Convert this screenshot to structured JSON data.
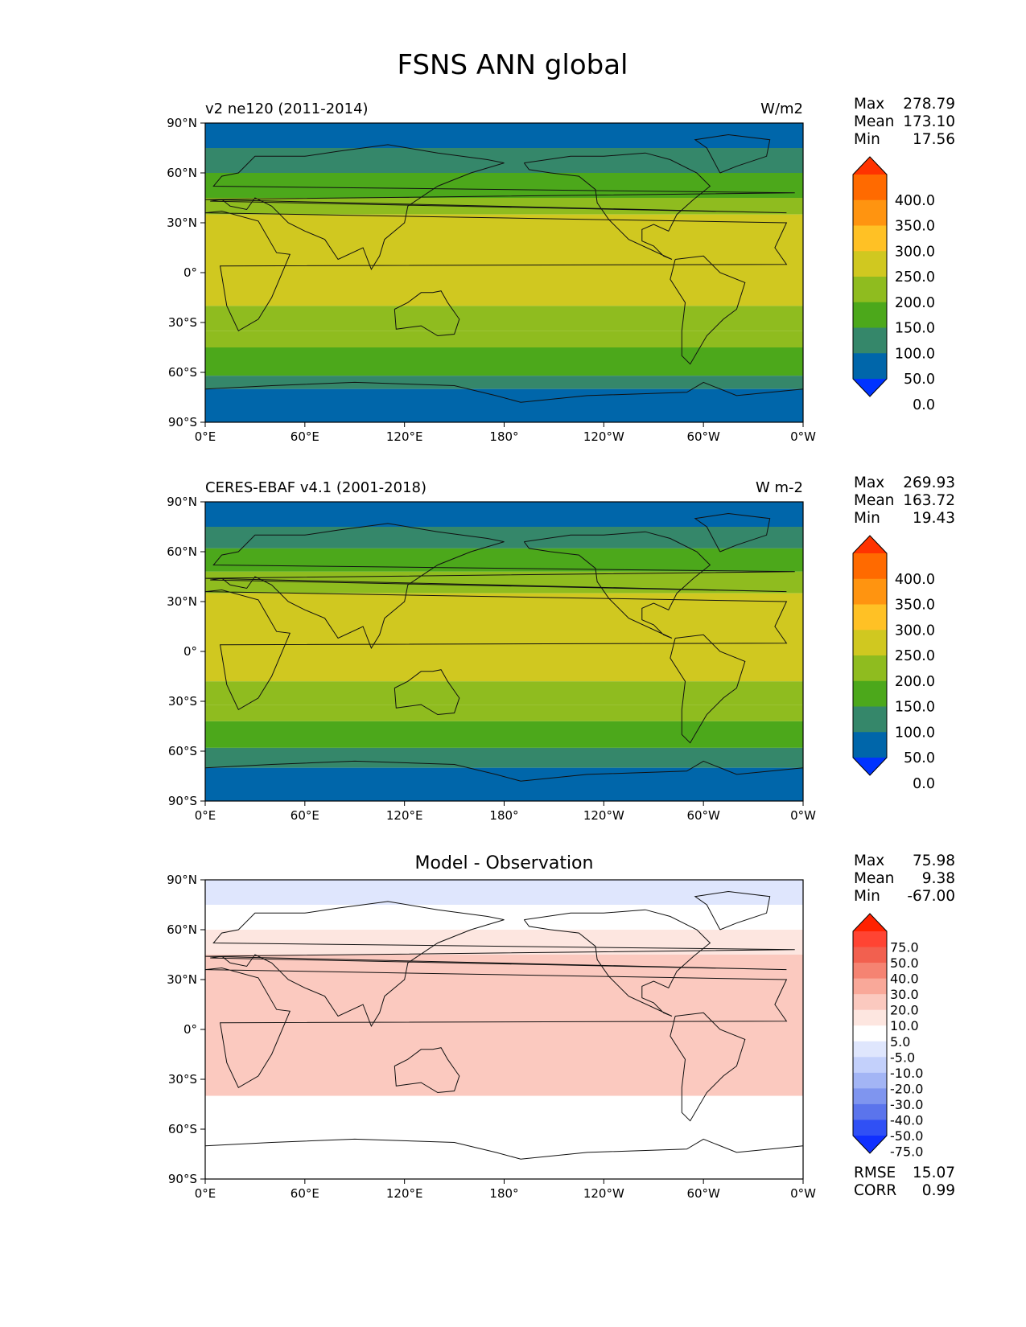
{
  "figure_title": "FSNS ANN global",
  "axes": {
    "lat_ticks": [
      "90°N",
      "60°N",
      "30°N",
      "0°",
      "30°S",
      "60°S",
      "90°S"
    ],
    "lon_ticks": [
      "0°E",
      "60°E",
      "120°E",
      "180°",
      "120°W",
      "60°W",
      "0°W"
    ]
  },
  "chart_data": [
    {
      "type": "heatmap",
      "title_left": "v2 ne120 (2011-2014)",
      "title_right": "W/m2",
      "stats": {
        "labels": [
          "Max",
          "Mean",
          "Min"
        ],
        "values": [
          "278.79",
          "173.10",
          "17.56"
        ]
      },
      "colorbar": {
        "levels": [
          "400.0",
          "350.0",
          "300.0",
          "250.0",
          "200.0",
          "150.0",
          "100.0",
          "50.0",
          "0.0"
        ],
        "colors": [
          "#ff3300",
          "#ff6a00",
          "#ff9410",
          "#ffc125",
          "#d0c820",
          "#8fbc1f",
          "#4ca81b",
          "#35876a",
          "#0066aa",
          "#0033ff"
        ]
      },
      "zonal_bands": [
        {
          "lat_range": [
            75,
            90
          ],
          "value": 30
        },
        {
          "lat_range": [
            60,
            75
          ],
          "value": 85
        },
        {
          "lat_range": [
            45,
            60
          ],
          "value": 125
        },
        {
          "lat_range": [
            35,
            45
          ],
          "value": 170
        },
        {
          "lat_range": [
            -20,
            35
          ],
          "value": 220
        },
        {
          "lat_range": [
            -35,
            -20
          ],
          "value": 190
        },
        {
          "lat_range": [
            -45,
            -35
          ],
          "value": 160
        },
        {
          "lat_range": [
            -62,
            -45
          ],
          "value": 115
        },
        {
          "lat_range": [
            -70,
            -62
          ],
          "value": 75
        },
        {
          "lat_range": [
            -90,
            -70
          ],
          "value": 30
        }
      ]
    },
    {
      "type": "heatmap",
      "title_left": "CERES-EBAF v4.1 (2001-2018)",
      "title_right": "W m-2",
      "stats": {
        "labels": [
          "Max",
          "Mean",
          "Min"
        ],
        "values": [
          "269.93",
          "163.72",
          "19.43"
        ]
      },
      "colorbar": {
        "levels": [
          "400.0",
          "350.0",
          "300.0",
          "250.0",
          "200.0",
          "150.0",
          "100.0",
          "50.0",
          "0.0"
        ],
        "colors": [
          "#ff3300",
          "#ff6a00",
          "#ff9410",
          "#ffc125",
          "#d0c820",
          "#8fbc1f",
          "#4ca81b",
          "#35876a",
          "#0066aa",
          "#0033ff"
        ]
      },
      "zonal_bands": [
        {
          "lat_range": [
            75,
            90
          ],
          "value": 30
        },
        {
          "lat_range": [
            62,
            75
          ],
          "value": 85
        },
        {
          "lat_range": [
            48,
            62
          ],
          "value": 125
        },
        {
          "lat_range": [
            35,
            48
          ],
          "value": 170
        },
        {
          "lat_range": [
            -18,
            35
          ],
          "value": 215
        },
        {
          "lat_range": [
            -32,
            -18
          ],
          "value": 190
        },
        {
          "lat_range": [
            -42,
            -32
          ],
          "value": 160
        },
        {
          "lat_range": [
            -58,
            -42
          ],
          "value": 115
        },
        {
          "lat_range": [
            -70,
            -58
          ],
          "value": 75
        },
        {
          "lat_range": [
            -90,
            -70
          ],
          "value": 30
        }
      ]
    },
    {
      "type": "heatmap",
      "title_center": "Model - Observation",
      "stats": {
        "labels": [
          "Max",
          "Mean",
          "Min"
        ],
        "values": [
          "75.98",
          "9.38",
          "-67.00"
        ]
      },
      "extra_stats": {
        "labels": [
          "RMSE",
          "CORR"
        ],
        "values": [
          "15.07",
          "0.99"
        ]
      },
      "colorbar": {
        "levels": [
          "75.0",
          "50.0",
          "40.0",
          "30.0",
          "20.0",
          "10.0",
          "5.0",
          "-5.0",
          "-10.0",
          "-20.0",
          "-30.0",
          "-40.0",
          "-50.0",
          "-75.0"
        ],
        "colors": [
          "#ff2200",
          "#ff4433",
          "#f2604f",
          "#f58372",
          "#f9a899",
          "#fbc9bf",
          "#fde6e0",
          "#ffffff",
          "#dfe6fd",
          "#c3d0fb",
          "#a3b5f5",
          "#7f95ef",
          "#5b74ec",
          "#3050f5",
          "#1030ff"
        ]
      },
      "zonal_bands": [
        {
          "lat_range": [
            75,
            90
          ],
          "value": -8
        },
        {
          "lat_range": [
            60,
            75
          ],
          "value": -4
        },
        {
          "lat_range": [
            45,
            60
          ],
          "value": 8
        },
        {
          "lat_range": [
            15,
            45
          ],
          "value": 12
        },
        {
          "lat_range": [
            -15,
            15
          ],
          "value": 18
        },
        {
          "lat_range": [
            -40,
            -15
          ],
          "value": 14
        },
        {
          "lat_range": [
            -60,
            -40
          ],
          "value": 4
        },
        {
          "lat_range": [
            -75,
            -60
          ],
          "value": 2
        },
        {
          "lat_range": [
            -90,
            -75
          ],
          "value": -3
        }
      ]
    }
  ]
}
